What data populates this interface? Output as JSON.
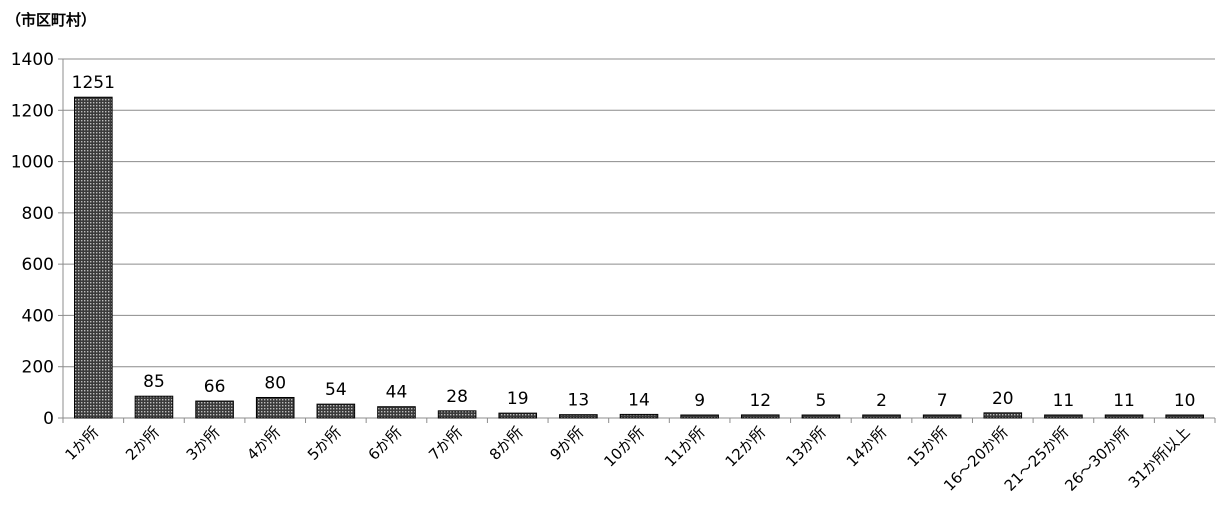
{
  "chart_data": {
    "type": "bar",
    "y_unit_label": "（市区町村）",
    "categories": [
      "1か所",
      "2か所",
      "3か所",
      "4か所",
      "5か所",
      "6か所",
      "7か所",
      "8か所",
      "9か所",
      "10か所",
      "11か所",
      "12か所",
      "13か所",
      "14か所",
      "15か所",
      "16～20か所",
      "21～25か所",
      "26～30か所",
      "31か所以上"
    ],
    "values": [
      1251,
      85,
      66,
      80,
      54,
      44,
      28,
      19,
      13,
      14,
      9,
      12,
      5,
      2,
      7,
      20,
      11,
      11,
      10
    ],
    "ylim": [
      0,
      1400
    ],
    "yticks": [
      0,
      200,
      400,
      600,
      800,
      1000,
      1200,
      1400
    ],
    "grid": true,
    "legend": "none",
    "bar_fill": "#555555",
    "bar_pattern": "dotted"
  }
}
